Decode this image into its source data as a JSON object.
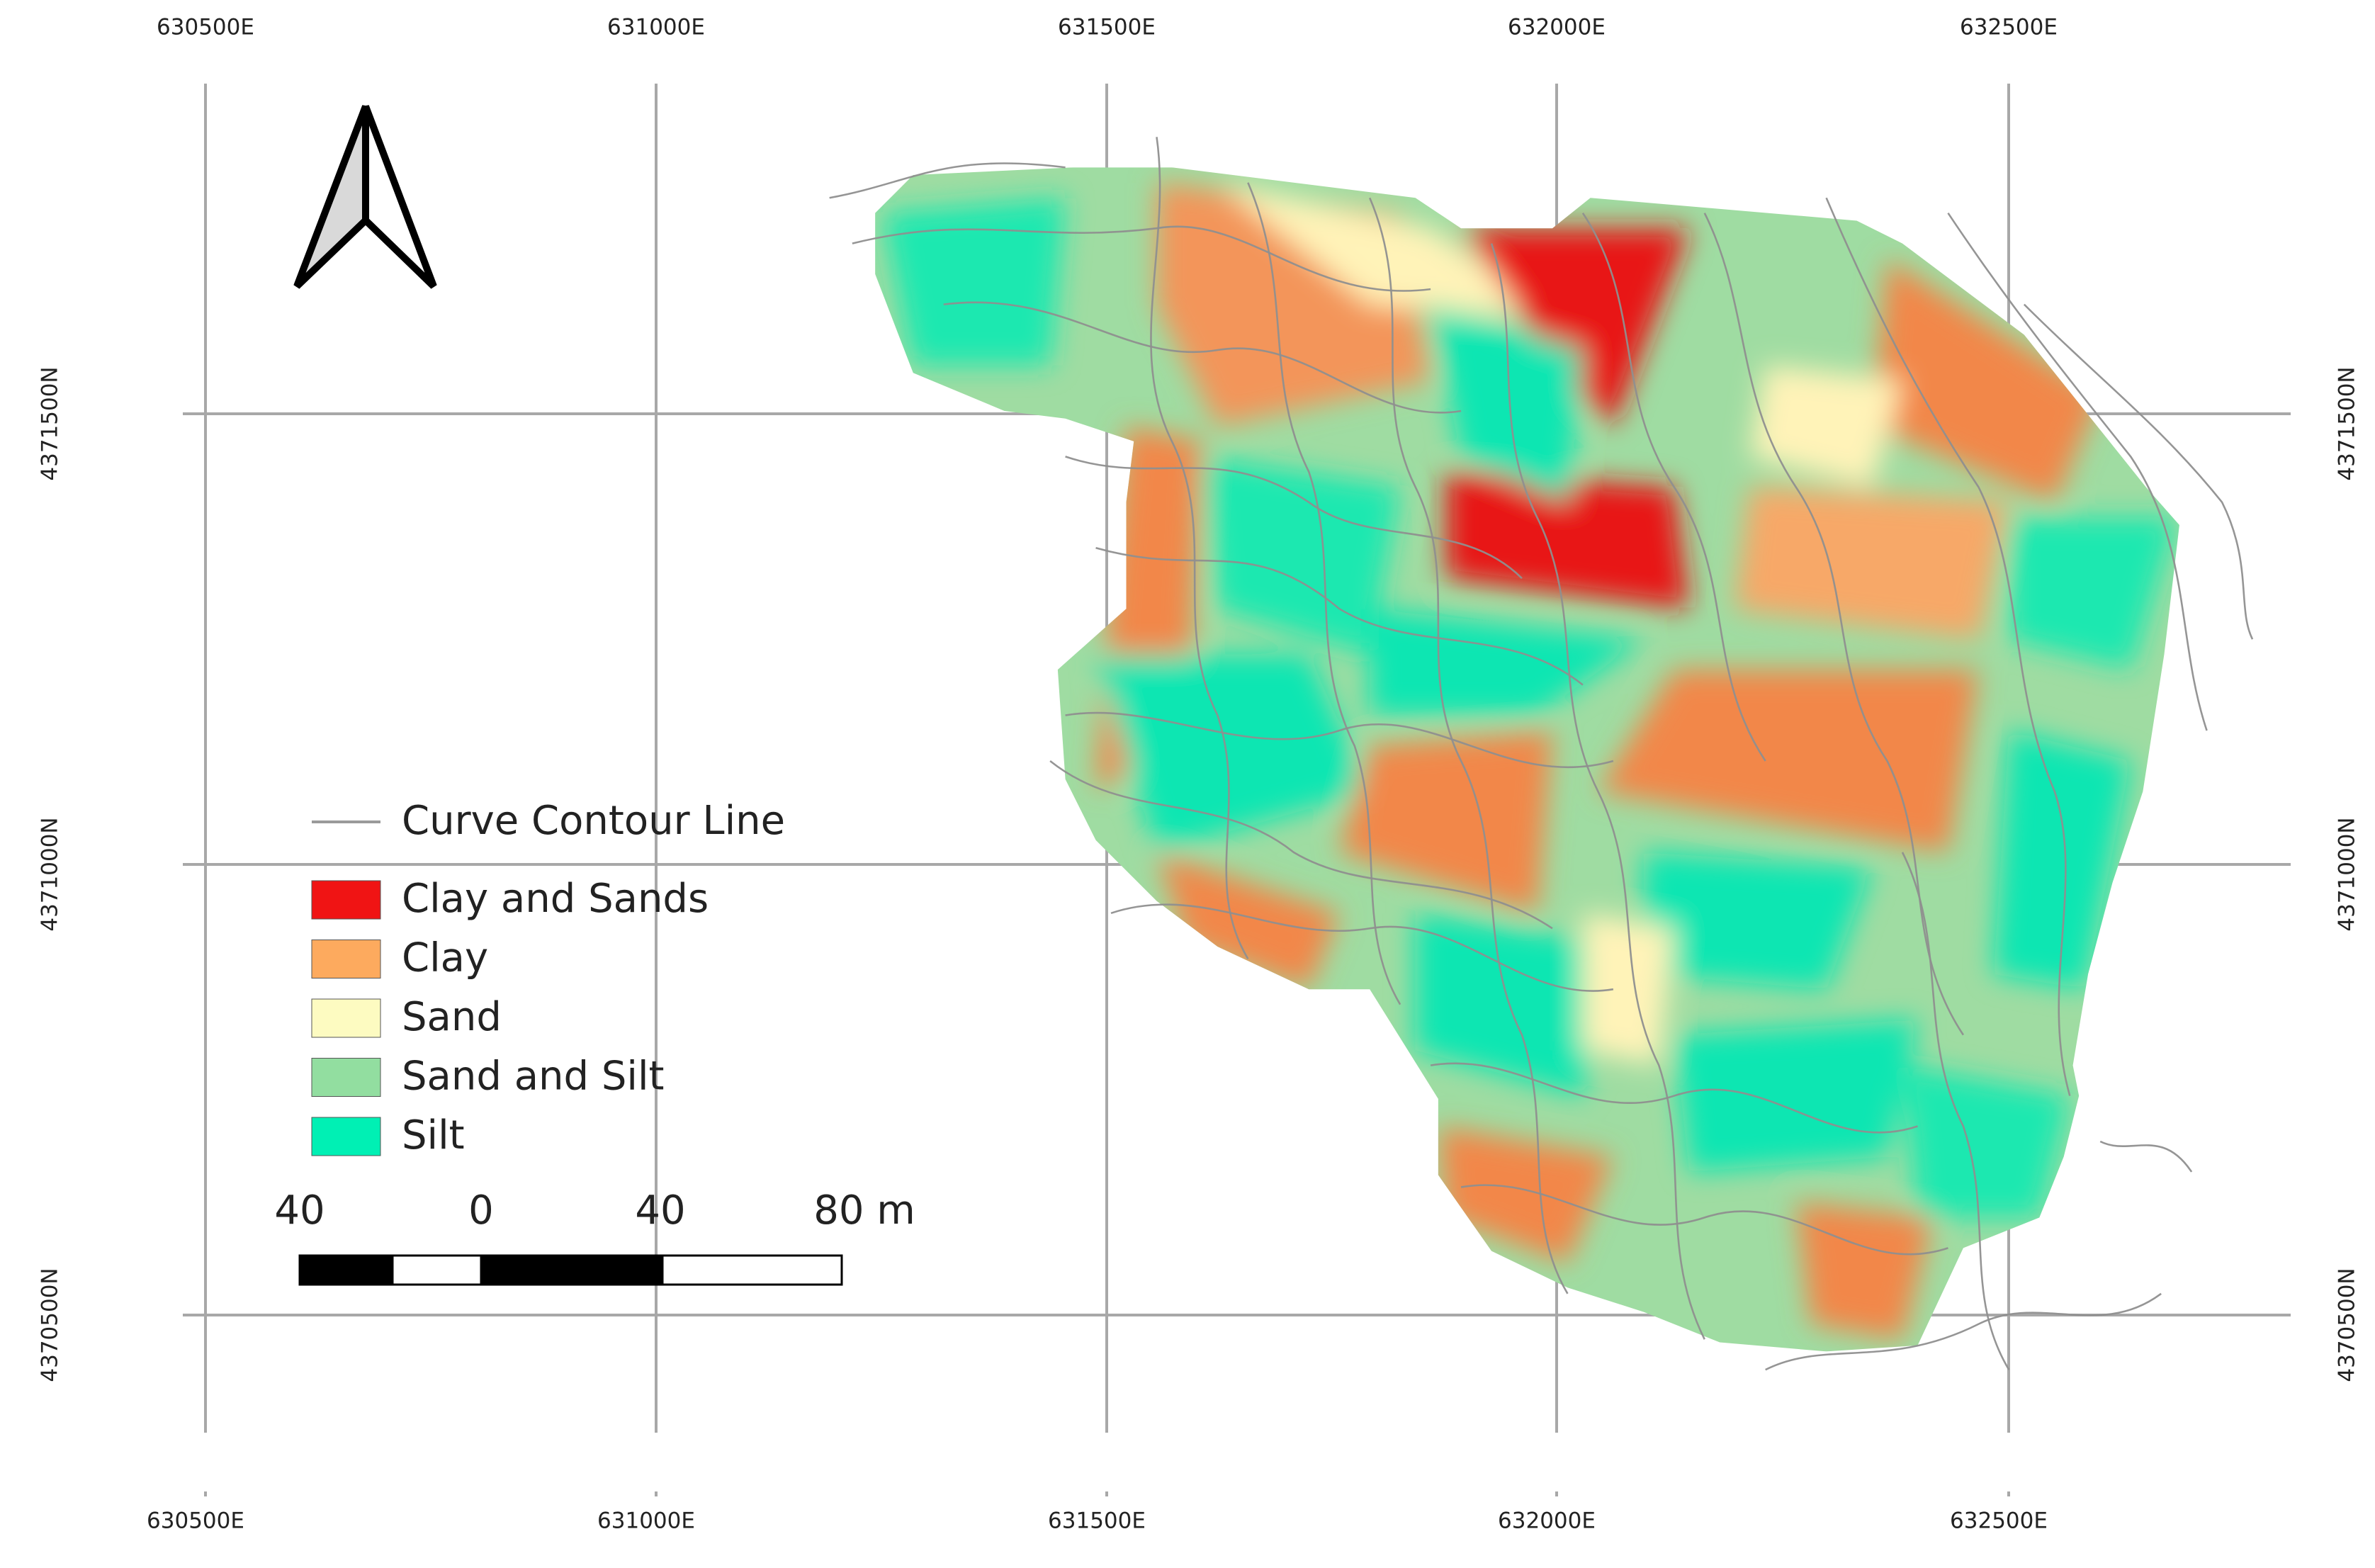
{
  "map": {
    "grid": {
      "top_labels": [
        "630500E",
        "631000E",
        "631500E",
        "632000E",
        "632500E"
      ],
      "bottom_labels": [
        "630500E",
        "631000E",
        "631500E",
        "632000E",
        "632500E"
      ],
      "left_labels": [
        "4371500N",
        "4371000N",
        "4370500N"
      ],
      "right_labels": [
        "4371500N",
        "4371000N",
        "4370500N"
      ]
    },
    "contour_legend": {
      "label": "Curve Contour Line",
      "color": "#9a9a9a"
    },
    "legend": [
      {
        "label": "Clay and Sands",
        "color": "#f01414"
      },
      {
        "label": "Clay",
        "color": "#fdaa5e"
      },
      {
        "label": "Sand",
        "color": "#fdfbc1"
      },
      {
        "label": "Sand and Silt",
        "color": "#92dea0"
      },
      {
        "label": "Silt",
        "color": "#00f0b4"
      }
    ],
    "scale_bar": {
      "labels": [
        "40",
        "0",
        "40",
        "80 m"
      ]
    }
  }
}
